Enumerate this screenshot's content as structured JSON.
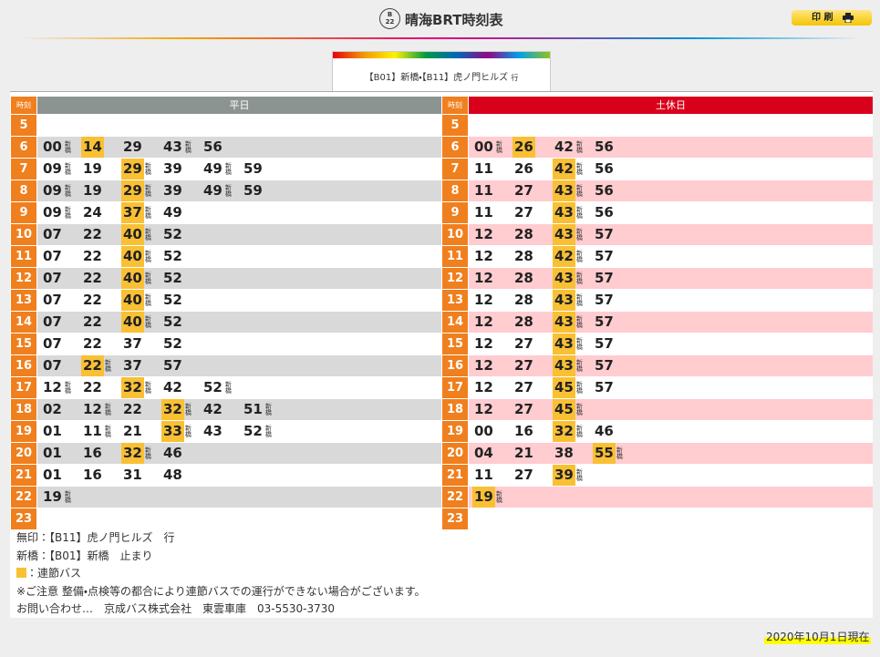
{
  "header": {
    "badge": {
      "top": "B",
      "bottom": "22"
    },
    "title": "晴海BRT時刻表",
    "print": "印 刷"
  },
  "tab": {
    "label": "【B01】新橋・【B11】虎ノ門ヒルズ",
    "suffix": "行"
  },
  "tables": [
    {
      "hour_header": "時刻",
      "title": "平日",
      "rows": [
        {
          "hour": 5,
          "entries": []
        },
        {
          "hour": 6,
          "entries": [
            {
              "m": "00",
              "n": "新橋"
            },
            {
              "m": "14",
              "a": true
            },
            {
              "m": "29"
            },
            {
              "m": "43",
              "n": "新橋"
            },
            {
              "m": "56"
            }
          ]
        },
        {
          "hour": 7,
          "entries": [
            {
              "m": "09",
              "n": "新橋"
            },
            {
              "m": "19"
            },
            {
              "m": "29",
              "a": true,
              "n": "新橋"
            },
            {
              "m": "39"
            },
            {
              "m": "49",
              "n": "新橋"
            },
            {
              "m": "59"
            }
          ]
        },
        {
          "hour": 8,
          "entries": [
            {
              "m": "09",
              "n": "新橋"
            },
            {
              "m": "19"
            },
            {
              "m": "29",
              "a": true,
              "n": "新橋"
            },
            {
              "m": "39"
            },
            {
              "m": "49",
              "n": "新橋"
            },
            {
              "m": "59"
            }
          ]
        },
        {
          "hour": 9,
          "entries": [
            {
              "m": "09",
              "n": "新橋"
            },
            {
              "m": "24"
            },
            {
              "m": "37",
              "a": true,
              "n": "新橋"
            },
            {
              "m": "49"
            }
          ]
        },
        {
          "hour": 10,
          "entries": [
            {
              "m": "07"
            },
            {
              "m": "22"
            },
            {
              "m": "40",
              "a": true,
              "n": "新橋"
            },
            {
              "m": "52"
            }
          ]
        },
        {
          "hour": 11,
          "entries": [
            {
              "m": "07"
            },
            {
              "m": "22"
            },
            {
              "m": "40",
              "a": true,
              "n": "新橋"
            },
            {
              "m": "52"
            }
          ]
        },
        {
          "hour": 12,
          "entries": [
            {
              "m": "07"
            },
            {
              "m": "22"
            },
            {
              "m": "40",
              "a": true,
              "n": "新橋"
            },
            {
              "m": "52"
            }
          ]
        },
        {
          "hour": 13,
          "entries": [
            {
              "m": "07"
            },
            {
              "m": "22"
            },
            {
              "m": "40",
              "a": true,
              "n": "新橋"
            },
            {
              "m": "52"
            }
          ]
        },
        {
          "hour": 14,
          "entries": [
            {
              "m": "07"
            },
            {
              "m": "22"
            },
            {
              "m": "40",
              "a": true,
              "n": "新橋"
            },
            {
              "m": "52"
            }
          ]
        },
        {
          "hour": 15,
          "entries": [
            {
              "m": "07"
            },
            {
              "m": "22"
            },
            {
              "m": "37"
            },
            {
              "m": "52"
            }
          ]
        },
        {
          "hour": 16,
          "entries": [
            {
              "m": "07"
            },
            {
              "m": "22",
              "a": true,
              "n": "新橋"
            },
            {
              "m": "37"
            },
            {
              "m": "57"
            }
          ]
        },
        {
          "hour": 17,
          "entries": [
            {
              "m": "12",
              "n": "新橋"
            },
            {
              "m": "22"
            },
            {
              "m": "32",
              "a": true,
              "n": "新橋"
            },
            {
              "m": "42"
            },
            {
              "m": "52",
              "n": "新橋"
            }
          ]
        },
        {
          "hour": 18,
          "entries": [
            {
              "m": "02"
            },
            {
              "m": "12",
              "n": "新橋"
            },
            {
              "m": "22"
            },
            {
              "m": "32",
              "a": true,
              "n": "新橋"
            },
            {
              "m": "42"
            },
            {
              "m": "51",
              "n": "新橋"
            }
          ]
        },
        {
          "hour": 19,
          "entries": [
            {
              "m": "01"
            },
            {
              "m": "11",
              "n": "新橋"
            },
            {
              "m": "21"
            },
            {
              "m": "33",
              "a": true,
              "n": "新橋"
            },
            {
              "m": "43"
            },
            {
              "m": "52",
              "n": "新橋"
            }
          ]
        },
        {
          "hour": 20,
          "entries": [
            {
              "m": "01"
            },
            {
              "m": "16"
            },
            {
              "m": "32",
              "a": true,
              "n": "新橋"
            },
            {
              "m": "46"
            }
          ]
        },
        {
          "hour": 21,
          "entries": [
            {
              "m": "01"
            },
            {
              "m": "16"
            },
            {
              "m": "31"
            },
            {
              "m": "48"
            }
          ]
        },
        {
          "hour": 22,
          "entries": [
            {
              "m": "19",
              "n": "新橋"
            }
          ]
        },
        {
          "hour": 23,
          "entries": []
        }
      ]
    },
    {
      "hour_header": "時刻",
      "title": "土休日",
      "rows": [
        {
          "hour": 5,
          "entries": []
        },
        {
          "hour": 6,
          "entries": [
            {
              "m": "00",
              "n": "新橋"
            },
            {
              "m": "26",
              "a": true
            },
            {
              "m": "42",
              "n": "新橋"
            },
            {
              "m": "56"
            }
          ]
        },
        {
          "hour": 7,
          "entries": [
            {
              "m": "11"
            },
            {
              "m": "26"
            },
            {
              "m": "42",
              "a": true,
              "n": "新橋"
            },
            {
              "m": "56"
            }
          ]
        },
        {
          "hour": 8,
          "entries": [
            {
              "m": "11"
            },
            {
              "m": "27"
            },
            {
              "m": "43",
              "a": true,
              "n": "新橋"
            },
            {
              "m": "56"
            }
          ]
        },
        {
          "hour": 9,
          "entries": [
            {
              "m": "11"
            },
            {
              "m": "27"
            },
            {
              "m": "43",
              "a": true,
              "n": "新橋"
            },
            {
              "m": "56"
            }
          ]
        },
        {
          "hour": 10,
          "entries": [
            {
              "m": "12"
            },
            {
              "m": "28"
            },
            {
              "m": "43",
              "a": true,
              "n": "新橋"
            },
            {
              "m": "57"
            }
          ]
        },
        {
          "hour": 11,
          "entries": [
            {
              "m": "12"
            },
            {
              "m": "28"
            },
            {
              "m": "42",
              "a": true,
              "n": "新橋"
            },
            {
              "m": "57"
            }
          ]
        },
        {
          "hour": 12,
          "entries": [
            {
              "m": "12"
            },
            {
              "m": "28"
            },
            {
              "m": "43",
              "a": true,
              "n": "新橋"
            },
            {
              "m": "57"
            }
          ]
        },
        {
          "hour": 13,
          "entries": [
            {
              "m": "12"
            },
            {
              "m": "28"
            },
            {
              "m": "43",
              "a": true,
              "n": "新橋"
            },
            {
              "m": "57"
            }
          ]
        },
        {
          "hour": 14,
          "entries": [
            {
              "m": "12"
            },
            {
              "m": "28"
            },
            {
              "m": "43",
              "a": true,
              "n": "新橋"
            },
            {
              "m": "57"
            }
          ]
        },
        {
          "hour": 15,
          "entries": [
            {
              "m": "12"
            },
            {
              "m": "27"
            },
            {
              "m": "43",
              "a": true,
              "n": "新橋"
            },
            {
              "m": "57"
            }
          ]
        },
        {
          "hour": 16,
          "entries": [
            {
              "m": "12"
            },
            {
              "m": "27"
            },
            {
              "m": "43",
              "a": true,
              "n": "新橋"
            },
            {
              "m": "57"
            }
          ]
        },
        {
          "hour": 17,
          "entries": [
            {
              "m": "12"
            },
            {
              "m": "27"
            },
            {
              "m": "45",
              "a": true,
              "n": "新橋"
            },
            {
              "m": "57"
            }
          ]
        },
        {
          "hour": 18,
          "entries": [
            {
              "m": "12"
            },
            {
              "m": "27"
            },
            {
              "m": "45",
              "a": true,
              "n": "新橋"
            }
          ]
        },
        {
          "hour": 19,
          "entries": [
            {
              "m": "00"
            },
            {
              "m": "16"
            },
            {
              "m": "32",
              "a": true,
              "n": "新橋"
            },
            {
              "m": "46"
            }
          ]
        },
        {
          "hour": 20,
          "entries": [
            {
              "m": "04"
            },
            {
              "m": "21"
            },
            {
              "m": "38"
            },
            {
              "m": "55",
              "a": true,
              "n": "新橋"
            }
          ]
        },
        {
          "hour": 21,
          "entries": [
            {
              "m": "11"
            },
            {
              "m": "27"
            },
            {
              "m": "39",
              "a": true,
              "n": "新橋"
            }
          ]
        },
        {
          "hour": 22,
          "entries": [
            {
              "m": "19",
              "a": true,
              "n": "新橋"
            }
          ]
        },
        {
          "hour": 23,
          "entries": []
        }
      ]
    }
  ],
  "notes": [
    "無印：【B11】虎ノ門ヒルズ　行",
    "新橋：【B01】新橋　止まり",
    "：連節バス",
    "※ご注意 整備・点検等の都合により連節バスでの運行ができない場合がございます。",
    "お問い合わせ…　京成バス株式会社　東雲車庫　03-5530-3730"
  ],
  "footer": "2020年10月1日現在"
}
